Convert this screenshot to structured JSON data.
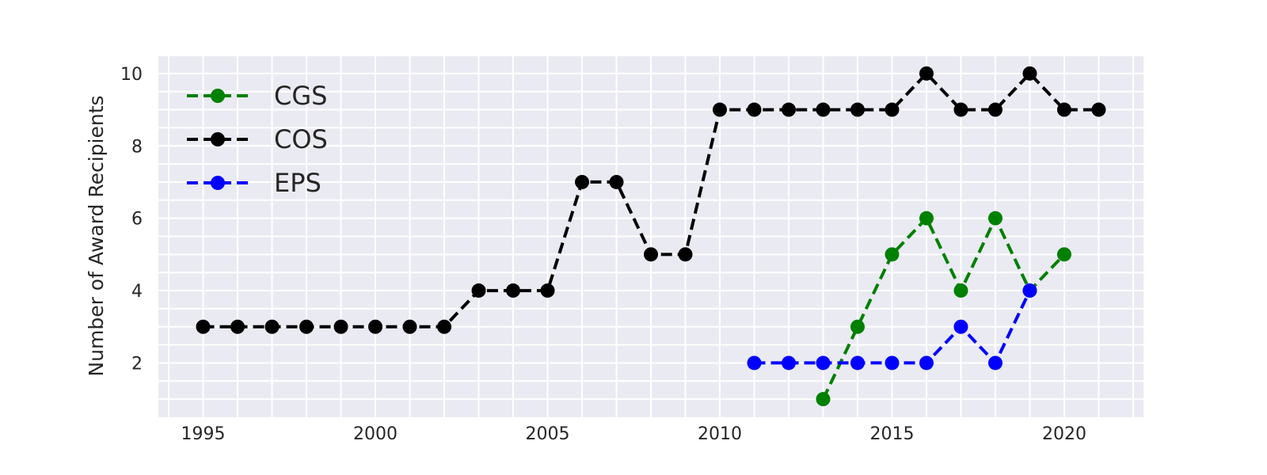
{
  "chart_data": {
    "type": "line",
    "title": "",
    "xlabel": "",
    "ylabel": "Number of Award Recipients",
    "xlim": [
      1993.7,
      2022.3
    ],
    "ylim": [
      0.5,
      10.5
    ],
    "x_ticks": [
      1995,
      2000,
      2005,
      2010,
      2015,
      2020
    ],
    "y_ticks": [
      2,
      4,
      6,
      8,
      10
    ],
    "x_minor_grid": [
      1994,
      1995,
      1996,
      1997,
      1998,
      1999,
      2000,
      2001,
      2002,
      2003,
      2004,
      2005,
      2006,
      2007,
      2008,
      2009,
      2010,
      2011,
      2012,
      2013,
      2014,
      2015,
      2016,
      2017,
      2018,
      2019,
      2020,
      2021,
      2022
    ],
    "y_minor_grid": [
      1,
      1.5,
      2,
      2.5,
      3,
      3.5,
      4,
      4.5,
      5,
      5.5,
      6,
      6.5,
      7,
      7.5,
      8,
      8.5,
      9,
      9.5,
      10,
      10.5
    ],
    "grid": true,
    "background_color": "#eaeaf2",
    "legend_position": "top-left",
    "series": [
      {
        "name": "CGS",
        "color": "#008000",
        "x": [
          2013,
          2014,
          2015,
          2016,
          2017,
          2018,
          2019,
          2020
        ],
        "y": [
          1,
          3,
          5,
          6,
          4,
          6,
          4,
          5
        ]
      },
      {
        "name": "COS",
        "color": "#000000",
        "x": [
          1995,
          1996,
          1997,
          1998,
          1999,
          2000,
          2001,
          2002,
          2003,
          2004,
          2005,
          2006,
          2007,
          2008,
          2009,
          2010,
          2011,
          2012,
          2013,
          2014,
          2015,
          2016,
          2017,
          2018,
          2019,
          2020,
          2021
        ],
        "y": [
          3,
          3,
          3,
          3,
          3,
          3,
          3,
          3,
          4,
          4,
          4,
          7,
          7,
          5,
          5,
          9,
          9,
          9,
          9,
          9,
          9,
          10,
          9,
          9,
          10,
          9,
          9
        ]
      },
      {
        "name": "EPS",
        "color": "#0000ff",
        "x": [
          2011,
          2012,
          2013,
          2014,
          2015,
          2016,
          2017,
          2018,
          2019
        ],
        "y": [
          2,
          2,
          2,
          2,
          2,
          2,
          3,
          2,
          4
        ]
      }
    ]
  }
}
